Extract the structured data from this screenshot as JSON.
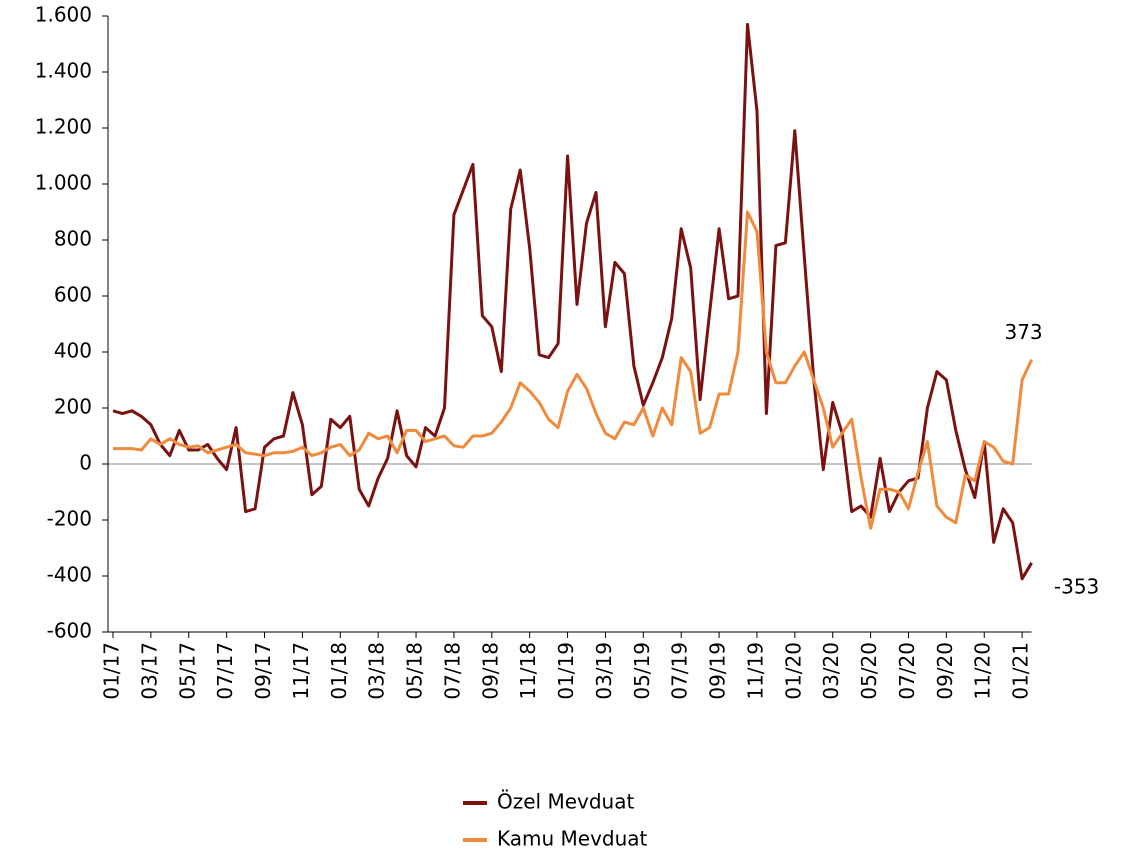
{
  "chart_data": {
    "type": "line",
    "categories": [
      "01/17",
      null,
      null,
      null,
      "03/17",
      null,
      null,
      null,
      "05/17",
      null,
      null,
      null,
      "07/17",
      null,
      null,
      null,
      "09/17",
      null,
      null,
      null,
      "11/17",
      null,
      null,
      null,
      "01/18",
      null,
      null,
      null,
      "03/18",
      null,
      null,
      null,
      "05/18",
      null,
      null,
      null,
      "07/18",
      null,
      null,
      null,
      "09/18",
      null,
      null,
      null,
      "11/18",
      null,
      null,
      null,
      "01/19",
      null,
      null,
      null,
      "03/19",
      null,
      null,
      null,
      "05/19",
      null,
      null,
      null,
      "07/19",
      null,
      null,
      null,
      "09/19",
      null,
      null,
      null,
      "11/19",
      null,
      null,
      null,
      "01/20",
      null,
      null,
      null,
      "03/20",
      null,
      null,
      null,
      "05/20",
      null,
      null,
      null,
      "07/20",
      null,
      null,
      null,
      "09/20",
      null,
      null,
      null,
      "11/20",
      null,
      null,
      null,
      "01/21",
      null
    ],
    "series": [
      {
        "name": "Özel Mevduat",
        "color": "#7a1212",
        "values": [
          190,
          180,
          190,
          170,
          140,
          70,
          30,
          120,
          50,
          50,
          70,
          20,
          -20,
          130,
          -170,
          -160,
          60,
          90,
          100,
          255,
          140,
          -110,
          -80,
          160,
          130,
          170,
          -90,
          -150,
          -50,
          20,
          190,
          30,
          -10,
          130,
          100,
          200,
          890,
          980,
          1070,
          530,
          490,
          330,
          910,
          1050,
          770,
          390,
          380,
          430,
          1100,
          570,
          860,
          970,
          490,
          720,
          680,
          350,
          210,
          290,
          380,
          520,
          840,
          700,
          230,
          540,
          840,
          590,
          600,
          1570,
          1260,
          180,
          780,
          790,
          1190,
          740,
          300,
          -20,
          220,
          110,
          -170,
          -150,
          -190,
          20,
          -170,
          -100,
          -60,
          -50,
          200,
          330,
          300,
          120,
          -20,
          -120,
          80,
          -280,
          -160,
          -210,
          -410,
          -353
        ]
      },
      {
        "name": "Kamu Mevduat",
        "color": "#f08a3c",
        "values": [
          55,
          55,
          55,
          50,
          90,
          70,
          90,
          70,
          60,
          65,
          40,
          50,
          60,
          70,
          40,
          35,
          30,
          40,
          40,
          45,
          60,
          30,
          40,
          60,
          70,
          30,
          50,
          110,
          90,
          100,
          40,
          120,
          120,
          80,
          90,
          100,
          65,
          60,
          100,
          100,
          110,
          150,
          200,
          290,
          260,
          220,
          160,
          130,
          260,
          320,
          270,
          180,
          110,
          90,
          150,
          140,
          200,
          100,
          200,
          140,
          380,
          330,
          110,
          130,
          250,
          250,
          400,
          900,
          830,
          400,
          290,
          290,
          350,
          400,
          300,
          200,
          60,
          110,
          160,
          -50,
          -230,
          -90,
          -90,
          -100,
          -160,
          -30,
          80,
          -150,
          -190,
          -210,
          -40,
          -60,
          80,
          60,
          10,
          0,
          300,
          373
        ]
      }
    ],
    "ylim": [
      -600,
      1600
    ],
    "yticks": [
      -600,
      -400,
      -200,
      0,
      200,
      400,
      600,
      800,
      {
        "value": 1000,
        "label": "1.000"
      },
      {
        "value": 1200,
        "label": "1.200"
      },
      {
        "value": 1400,
        "label": "1.400"
      },
      {
        "value": 1600,
        "label": "1.600"
      }
    ],
    "legend": "bottom"
  }
}
